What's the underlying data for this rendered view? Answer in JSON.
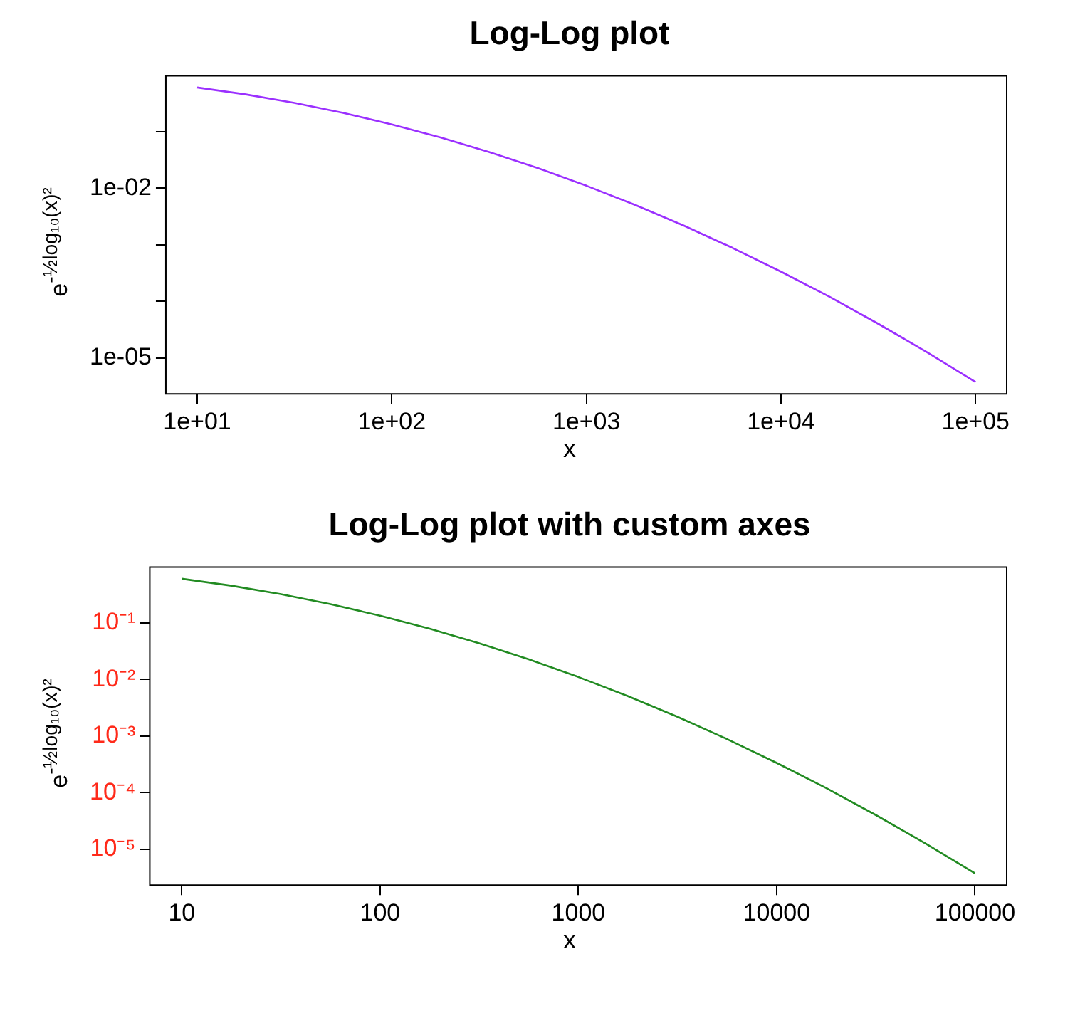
{
  "chart_data": [
    {
      "type": "line",
      "title": "Log-Log plot",
      "xlabel": "x",
      "ylabel": "e$^{-½log₁₀(x)²}$",
      "log": "xy",
      "grid": false,
      "legend": false,
      "marker": "none",
      "line_style": "solid",
      "x": [
        10,
        17.8,
        31.6,
        56.2,
        100,
        178,
        316,
        562,
        1000,
        1778,
        3162,
        5623,
        10000,
        17783,
        31623,
        56234,
        100000
      ],
      "xlim": [
        6.9,
        144544
      ],
      "ylim": [
        2.3e-06,
        0.98
      ],
      "xticks": [
        {
          "value": 10,
          "label": "1e+01"
        },
        {
          "value": 100,
          "label": "1e+02"
        },
        {
          "value": 1000,
          "label": "1e+03"
        },
        {
          "value": 10000,
          "label": "1e+04"
        },
        {
          "value": 100000,
          "label": "1e+05"
        }
      ],
      "yticks": [
        {
          "value": 1e-05,
          "label": "1e-05"
        },
        {
          "value": 0.0001,
          "label": null
        },
        {
          "value": 0.001,
          "label": null
        },
        {
          "value": 0.01,
          "label": "1e-02"
        },
        {
          "value": 0.1,
          "label": null
        }
      ],
      "series": [
        {
          "color": "#9b30ff",
          "values": [
            0.607,
            0.458,
            0.325,
            0.216,
            0.135,
            0.0796,
            0.0439,
            0.0228,
            0.0111,
            0.00509,
            0.00219,
            0.000884,
            0.000335,
            0.00012,
            4e-05,
            1.26e-05,
            3.73e-06
          ]
        }
      ]
    },
    {
      "type": "line",
      "title": "Log-Log plot with custom axes",
      "xlabel": "x",
      "ylabel": "e$^{-½log₁₀(x)²}$",
      "log": "xy",
      "grid": false,
      "legend": false,
      "marker": "none",
      "line_style": "solid",
      "x": [
        10,
        17.8,
        31.6,
        56.2,
        100,
        178,
        316,
        562,
        1000,
        1778,
        3162,
        5623,
        10000,
        17783,
        31623,
        56234,
        100000
      ],
      "xlim": [
        6.9,
        144544
      ],
      "ylim": [
        2.3e-06,
        0.98
      ],
      "xticks": [
        10,
        100,
        1000,
        10000,
        100000
      ],
      "yticks": [
        {
          "value": 1e-05,
          "label": "10⁻⁵"
        },
        {
          "value": 0.0001,
          "label": "10⁻⁴"
        },
        {
          "value": 0.001,
          "label": "10⁻³"
        },
        {
          "value": 0.01,
          "label": "10⁻²"
        },
        {
          "value": 0.1,
          "label": "10⁻¹"
        }
      ],
      "series": [
        {
          "color": "#228b22",
          "values": [
            0.607,
            0.458,
            0.325,
            0.216,
            0.135,
            0.0796,
            0.0439,
            0.0228,
            0.0111,
            0.00509,
            0.00219,
            0.000884,
            0.000335,
            0.00012,
            4e-05,
            1.26e-05,
            3.73e-06
          ]
        }
      ]
    }
  ]
}
